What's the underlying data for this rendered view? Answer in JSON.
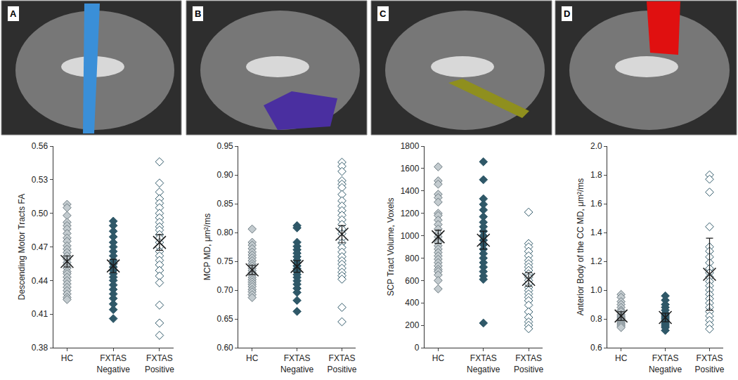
{
  "chart_data": [
    {
      "type": "scatter",
      "panel": "A",
      "ylabel": "Descending Motor Tracts FA",
      "categories": [
        "HC",
        "FXTAS Negative",
        "FXTAS Positive"
      ],
      "ylim": [
        0.38,
        0.56
      ],
      "yticks": [
        0.38,
        0.41,
        0.44,
        0.47,
        {
          "value": 0.5,
          "label": "0.50"
        },
        0.53,
        0.56
      ],
      "groups": [
        {
          "color": "#c3cbcf",
          "marker": "diamond",
          "mean": 0.457,
          "error": 0.005,
          "values": [
            0.508,
            0.505,
            0.498,
            0.492,
            0.489,
            0.486,
            0.482,
            0.478,
            0.475,
            0.471,
            0.468,
            0.465,
            0.462,
            0.459,
            0.456,
            0.454,
            0.451,
            0.448,
            0.446,
            0.443,
            0.44,
            0.437,
            0.434,
            0.431,
            0.428,
            0.425,
            0.423
          ]
        },
        {
          "color": "#2f5868",
          "marker": "diamond",
          "mean": 0.453,
          "error": 0.006,
          "values": [
            0.493,
            0.489,
            0.484,
            0.479,
            0.474,
            0.47,
            0.466,
            0.462,
            0.458,
            0.455,
            0.452,
            0.449,
            0.446,
            0.443,
            0.44,
            0.436,
            0.432,
            0.428,
            0.424,
            0.419,
            0.414,
            0.406
          ]
        },
        {
          "color": "#2f5868",
          "marker": "diamond-open",
          "mean": 0.474,
          "error": 0.007,
          "values": [
            0.546,
            0.527,
            0.519,
            0.513,
            0.509,
            0.505,
            0.5,
            0.496,
            0.492,
            0.488,
            0.485,
            0.481,
            0.478,
            0.474,
            0.47,
            0.466,
            0.462,
            0.458,
            0.454,
            0.449,
            0.444,
            0.438,
            0.418,
            0.402,
            0.391
          ]
        }
      ]
    },
    {
      "type": "scatter",
      "panel": "B",
      "ylabel": "MCP MD, μm²/ms",
      "categories": [
        "HC",
        "FXTAS Negative",
        "FXTAS Positive"
      ],
      "ylim": [
        0.6,
        0.95
      ],
      "yticks": [
        {
          "value": 0.6,
          "label": "0.60"
        },
        0.65,
        {
          "value": 0.7,
          "label": "0.70"
        },
        0.75,
        {
          "value": 0.8,
          "label": "0.80"
        },
        0.85,
        {
          "value": 0.9,
          "label": "0.90"
        },
        0.95
      ],
      "groups": [
        {
          "color": "#c3cbcf",
          "marker": "diamond",
          "mean": 0.735,
          "error": 0.008,
          "values": [
            0.806,
            0.783,
            0.778,
            0.772,
            0.766,
            0.761,
            0.756,
            0.751,
            0.746,
            0.742,
            0.738,
            0.734,
            0.73,
            0.726,
            0.722,
            0.718,
            0.714,
            0.71,
            0.706,
            0.701,
            0.697,
            0.692,
            0.687
          ]
        },
        {
          "color": "#2f5868",
          "marker": "diamond",
          "mean": 0.741,
          "error": 0.01,
          "values": [
            0.812,
            0.808,
            0.783,
            0.776,
            0.77,
            0.764,
            0.758,
            0.752,
            0.747,
            0.742,
            0.737,
            0.732,
            0.727,
            0.722,
            0.716,
            0.71,
            0.703,
            0.696,
            0.682,
            0.663
          ]
        },
        {
          "color": "#2f5868",
          "marker": "diamond-open",
          "mean": 0.797,
          "error": 0.015,
          "values": [
            0.922,
            0.915,
            0.906,
            0.89,
            0.884,
            0.878,
            0.866,
            0.855,
            0.846,
            0.838,
            0.83,
            0.822,
            0.814,
            0.806,
            0.798,
            0.79,
            0.782,
            0.774,
            0.766,
            0.758,
            0.751,
            0.745,
            0.738,
            0.731,
            0.725,
            0.719,
            0.67,
            0.645
          ]
        }
      ]
    },
    {
      "type": "scatter",
      "panel": "C",
      "ylabel": "SCP Tract Volume, Voxels",
      "categories": [
        "HC",
        "FXTAS Negative",
        "FXTAS Positive"
      ],
      "ylim": [
        0,
        1800
      ],
      "yticks": [
        0,
        200,
        400,
        600,
        800,
        1000,
        1200,
        1400,
        1600,
        1800
      ],
      "groups": [
        {
          "color": "#c3cbcf",
          "marker": "diamond",
          "mean": 990,
          "error": 60,
          "values": [
            1615,
            1490,
            1460,
            1370,
            1340,
            1300,
            1200,
            1180,
            1140,
            1100,
            1060,
            1020,
            990,
            960,
            940,
            910,
            880,
            850,
            820,
            790,
            760,
            730,
            700,
            680,
            650,
            600,
            525
          ]
        },
        {
          "color": "#2f5868",
          "marker": "diamond",
          "mean": 960,
          "error": 80,
          "values": [
            1660,
            1500,
            1330,
            1280,
            1230,
            1170,
            1120,
            1080,
            1040,
            1000,
            960,
            920,
            880,
            840,
            800,
            760,
            720,
            680,
            640,
            610,
            220
          ]
        },
        {
          "color": "#2f5868",
          "marker": "diamond-open",
          "mean": 610,
          "error": 60,
          "values": [
            1210,
            930,
            900,
            860,
            820,
            780,
            750,
            720,
            690,
            660,
            630,
            600,
            570,
            540,
            510,
            480,
            450,
            420,
            380,
            320,
            270,
            230,
            200,
            170
          ]
        }
      ]
    },
    {
      "type": "scatter",
      "panel": "D",
      "ylabel": "Anterior Body of the CC MD, μm²/ms",
      "categories": [
        "HC",
        "FXTAS Negative",
        "FXTAS Positive"
      ],
      "ylim": [
        0.6,
        2.0
      ],
      "yticks": [
        0.6,
        0.8,
        {
          "value": 1,
          "label": "1.0"
        },
        1.2,
        1.4,
        1.6,
        1.8,
        {
          "value": 2,
          "label": "2.0"
        }
      ],
      "groups": [
        {
          "color": "#c3cbcf",
          "marker": "diamond",
          "mean": 0.82,
          "error": 0.03,
          "values": [
            0.97,
            0.95,
            0.92,
            0.9,
            0.88,
            0.86,
            0.85,
            0.83,
            0.82,
            0.81,
            0.8,
            0.79,
            0.78,
            0.77,
            0.76,
            0.75,
            0.74
          ]
        },
        {
          "color": "#2f5868",
          "marker": "diamond",
          "mean": 0.81,
          "error": 0.03,
          "values": [
            0.96,
            0.93,
            0.9,
            0.88,
            0.86,
            0.84,
            0.83,
            0.82,
            0.81,
            0.8,
            0.79,
            0.78,
            0.77,
            0.76,
            0.75,
            0.74,
            0.72
          ]
        },
        {
          "color": "#2f5868",
          "marker": "diamond-open",
          "mean": 1.11,
          "error": 0.25,
          "values": [
            1.8,
            1.77,
            1.68,
            1.44,
            1.3,
            1.27,
            1.23,
            1.19,
            1.15,
            1.12,
            1.09,
            1.06,
            1.03,
            1.0,
            0.97,
            0.94,
            0.91,
            0.88,
            0.85,
            0.82,
            0.79,
            0.76,
            0.73
          ]
        }
      ]
    }
  ]
}
